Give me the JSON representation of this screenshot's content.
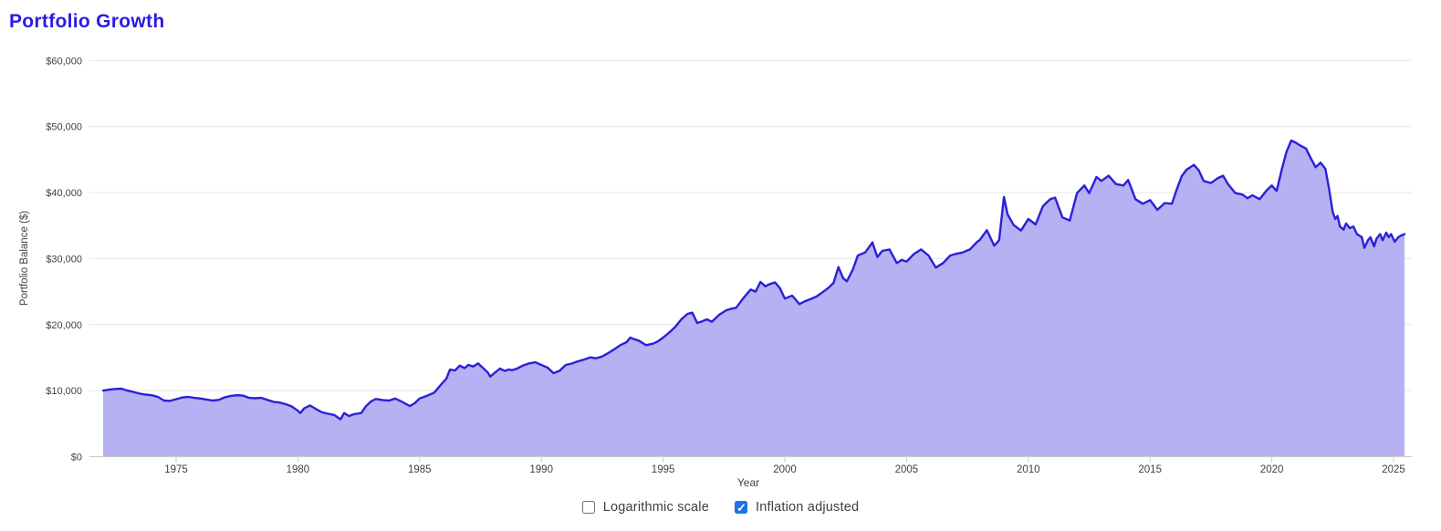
{
  "title": {
    "text": "Portfolio Growth",
    "color": "#2b1ae3"
  },
  "controls": {
    "logarithmic": {
      "label": "Logarithmic scale",
      "checked": false
    },
    "inflation": {
      "label": "Inflation adjusted",
      "checked": true,
      "accent_color": "#1a73e8"
    }
  },
  "chart_data": {
    "type": "area",
    "title": "Portfolio Growth",
    "xlabel": "Year",
    "ylabel": "Portfolio Balance ($)",
    "xlim": [
      1971.9,
      2025.8
    ],
    "ylim": [
      0,
      60000
    ],
    "grid": "horizontal",
    "legend": "none",
    "line_color": "#2a20d9",
    "fill_color": "#b6b1f2",
    "grid_color": "#e6e6e6",
    "axis_color": "#c9c9c9",
    "tick_text_color": "#3f3f3f",
    "x_ticks": [
      1975,
      1980,
      1985,
      1990,
      1995,
      2000,
      2005,
      2010,
      2015,
      2020,
      2025
    ],
    "x_tick_labels": [
      "1975",
      "1980",
      "1985",
      "1990",
      "1995",
      "2000",
      "2005",
      "2010",
      "2015",
      "2020",
      "2025"
    ],
    "y_ticks": [
      0,
      10000,
      20000,
      30000,
      40000,
      50000,
      60000
    ],
    "y_tick_labels": [
      "$0",
      "$10,000",
      "$20,000",
      "$30,000",
      "$40,000",
      "$50,000",
      "$60,000"
    ],
    "series": [
      {
        "name": "Portfolio Balance",
        "points": [
          [
            1972.0,
            10000
          ],
          [
            1972.25,
            10150
          ],
          [
            1972.5,
            10250
          ],
          [
            1972.75,
            10300
          ],
          [
            1973.0,
            10000
          ],
          [
            1973.25,
            9800
          ],
          [
            1973.5,
            9550
          ],
          [
            1973.75,
            9400
          ],
          [
            1974.0,
            9300
          ],
          [
            1974.25,
            9050
          ],
          [
            1974.5,
            8500
          ],
          [
            1974.75,
            8450
          ],
          [
            1975.0,
            8700
          ],
          [
            1975.25,
            8950
          ],
          [
            1975.5,
            9050
          ],
          [
            1975.75,
            8900
          ],
          [
            1976.0,
            8800
          ],
          [
            1976.25,
            8650
          ],
          [
            1976.5,
            8500
          ],
          [
            1976.75,
            8600
          ],
          [
            1977.0,
            9000
          ],
          [
            1977.25,
            9200
          ],
          [
            1977.5,
            9300
          ],
          [
            1977.75,
            9250
          ],
          [
            1978.0,
            8900
          ],
          [
            1978.25,
            8850
          ],
          [
            1978.5,
            8900
          ],
          [
            1978.75,
            8600
          ],
          [
            1979.0,
            8300
          ],
          [
            1979.25,
            8200
          ],
          [
            1979.5,
            7950
          ],
          [
            1979.75,
            7600
          ],
          [
            1980.0,
            6950
          ],
          [
            1980.1,
            6600
          ],
          [
            1980.25,
            7300
          ],
          [
            1980.5,
            7750
          ],
          [
            1980.75,
            7200
          ],
          [
            1981.0,
            6700
          ],
          [
            1981.25,
            6500
          ],
          [
            1981.5,
            6300
          ],
          [
            1981.75,
            5650
          ],
          [
            1981.9,
            6600
          ],
          [
            1982.1,
            6150
          ],
          [
            1982.3,
            6430
          ],
          [
            1982.6,
            6610
          ],
          [
            1982.8,
            7650
          ],
          [
            1983.0,
            8350
          ],
          [
            1983.2,
            8730
          ],
          [
            1983.5,
            8550
          ],
          [
            1983.75,
            8500
          ],
          [
            1984.0,
            8800
          ],
          [
            1984.25,
            8350
          ],
          [
            1984.6,
            7650
          ],
          [
            1984.8,
            8100
          ],
          [
            1985.0,
            8820
          ],
          [
            1985.3,
            9200
          ],
          [
            1985.6,
            9700
          ],
          [
            1985.9,
            11000
          ],
          [
            1986.1,
            11800
          ],
          [
            1986.25,
            13200
          ],
          [
            1986.45,
            13050
          ],
          [
            1986.65,
            13790
          ],
          [
            1986.85,
            13400
          ],
          [
            1987.0,
            13890
          ],
          [
            1987.2,
            13650
          ],
          [
            1987.4,
            14120
          ],
          [
            1987.6,
            13430
          ],
          [
            1987.8,
            12740
          ],
          [
            1987.9,
            12130
          ],
          [
            1988.1,
            12740
          ],
          [
            1988.3,
            13340
          ],
          [
            1988.5,
            12970
          ],
          [
            1988.65,
            13200
          ],
          [
            1988.8,
            13100
          ],
          [
            1989.0,
            13340
          ],
          [
            1989.25,
            13800
          ],
          [
            1989.5,
            14120
          ],
          [
            1989.75,
            14300
          ],
          [
            1990.0,
            13890
          ],
          [
            1990.25,
            13500
          ],
          [
            1990.5,
            12640
          ],
          [
            1990.75,
            13000
          ],
          [
            1991.0,
            13890
          ],
          [
            1991.25,
            14100
          ],
          [
            1991.5,
            14440
          ],
          [
            1991.75,
            14700
          ],
          [
            1992.0,
            15040
          ],
          [
            1992.25,
            14900
          ],
          [
            1992.5,
            15180
          ],
          [
            1992.75,
            15700
          ],
          [
            1993.0,
            16280
          ],
          [
            1993.25,
            16900
          ],
          [
            1993.5,
            17350
          ],
          [
            1993.65,
            18040
          ],
          [
            1993.8,
            17800
          ],
          [
            1994.0,
            17580
          ],
          [
            1994.3,
            16890
          ],
          [
            1994.6,
            17120
          ],
          [
            1994.8,
            17500
          ],
          [
            1995.0,
            18040
          ],
          [
            1995.25,
            18800
          ],
          [
            1995.5,
            19650
          ],
          [
            1995.75,
            20800
          ],
          [
            1996.0,
            21630
          ],
          [
            1996.2,
            21810
          ],
          [
            1996.4,
            20250
          ],
          [
            1996.6,
            20500
          ],
          [
            1996.8,
            20800
          ],
          [
            1997.0,
            20430
          ],
          [
            1997.3,
            21490
          ],
          [
            1997.6,
            22180
          ],
          [
            1997.8,
            22400
          ],
          [
            1998.0,
            22550
          ],
          [
            1998.3,
            24020
          ],
          [
            1998.6,
            25320
          ],
          [
            1998.8,
            25000
          ],
          [
            1999.0,
            26470
          ],
          [
            1999.2,
            25800
          ],
          [
            1999.35,
            26090
          ],
          [
            1999.6,
            26400
          ],
          [
            1999.8,
            25500
          ],
          [
            2000.0,
            23930
          ],
          [
            2000.3,
            24390
          ],
          [
            2000.6,
            23100
          ],
          [
            2000.8,
            23500
          ],
          [
            2001.0,
            23790
          ],
          [
            2001.3,
            24250
          ],
          [
            2001.6,
            25040
          ],
          [
            2001.8,
            25600
          ],
          [
            2002.0,
            26330
          ],
          [
            2002.2,
            28720
          ],
          [
            2002.4,
            27000
          ],
          [
            2002.55,
            26560
          ],
          [
            2002.8,
            28400
          ],
          [
            2003.0,
            30470
          ],
          [
            2003.3,
            30930
          ],
          [
            2003.6,
            32450
          ],
          [
            2003.8,
            30240
          ],
          [
            2004.0,
            31160
          ],
          [
            2004.3,
            31390
          ],
          [
            2004.6,
            29320
          ],
          [
            2004.8,
            29800
          ],
          [
            2005.0,
            29550
          ],
          [
            2005.3,
            30700
          ],
          [
            2005.6,
            31390
          ],
          [
            2005.9,
            30470
          ],
          [
            2006.2,
            28630
          ],
          [
            2006.5,
            29320
          ],
          [
            2006.8,
            30470
          ],
          [
            2007.0,
            30700
          ],
          [
            2007.3,
            30930
          ],
          [
            2007.6,
            31390
          ],
          [
            2007.9,
            32550
          ],
          [
            2008.0,
            32780
          ],
          [
            2008.3,
            34300
          ],
          [
            2008.6,
            31950
          ],
          [
            2008.8,
            32780
          ],
          [
            2009.0,
            39320
          ],
          [
            2009.15,
            36690
          ],
          [
            2009.4,
            35080
          ],
          [
            2009.7,
            34250
          ],
          [
            2010.0,
            36000
          ],
          [
            2010.3,
            35170
          ],
          [
            2010.6,
            37940
          ],
          [
            2010.9,
            39000
          ],
          [
            2011.1,
            39230
          ],
          [
            2011.4,
            36230
          ],
          [
            2011.7,
            35770
          ],
          [
            2012.0,
            39920
          ],
          [
            2012.3,
            41070
          ],
          [
            2012.5,
            39920
          ],
          [
            2012.8,
            42360
          ],
          [
            2013.0,
            41760
          ],
          [
            2013.3,
            42550
          ],
          [
            2013.6,
            41300
          ],
          [
            2013.9,
            41070
          ],
          [
            2014.1,
            41900
          ],
          [
            2014.4,
            39000
          ],
          [
            2014.7,
            38310
          ],
          [
            2015.0,
            38860
          ],
          [
            2015.3,
            37380
          ],
          [
            2015.6,
            38400
          ],
          [
            2015.9,
            38310
          ],
          [
            2016.1,
            40500
          ],
          [
            2016.3,
            42500
          ],
          [
            2016.5,
            43460
          ],
          [
            2016.8,
            44200
          ],
          [
            2017.0,
            43370
          ],
          [
            2017.2,
            41760
          ],
          [
            2017.5,
            41440
          ],
          [
            2017.8,
            42220
          ],
          [
            2018.0,
            42550
          ],
          [
            2018.2,
            41300
          ],
          [
            2018.5,
            39920
          ],
          [
            2018.8,
            39690
          ],
          [
            2019.0,
            39140
          ],
          [
            2019.2,
            39600
          ],
          [
            2019.5,
            39000
          ],
          [
            2019.8,
            40380
          ],
          [
            2020.0,
            41070
          ],
          [
            2020.2,
            40250
          ],
          [
            2020.4,
            43370
          ],
          [
            2020.6,
            46130
          ],
          [
            2020.8,
            47890
          ],
          [
            2021.0,
            47520
          ],
          [
            2021.2,
            47060
          ],
          [
            2021.4,
            46690
          ],
          [
            2021.6,
            45220
          ],
          [
            2021.8,
            43830
          ],
          [
            2022.0,
            44530
          ],
          [
            2022.2,
            43600
          ],
          [
            2022.35,
            40600
          ],
          [
            2022.5,
            37100
          ],
          [
            2022.6,
            36000
          ],
          [
            2022.7,
            36460
          ],
          [
            2022.8,
            34850
          ],
          [
            2022.95,
            34390
          ],
          [
            2023.05,
            35310
          ],
          [
            2023.2,
            34620
          ],
          [
            2023.35,
            34850
          ],
          [
            2023.5,
            33700
          ],
          [
            2023.7,
            33240
          ],
          [
            2023.8,
            31630
          ],
          [
            2023.95,
            32780
          ],
          [
            2024.05,
            33240
          ],
          [
            2024.2,
            31860
          ],
          [
            2024.3,
            33010
          ],
          [
            2024.45,
            33700
          ],
          [
            2024.55,
            32780
          ],
          [
            2024.7,
            33930
          ],
          [
            2024.8,
            33240
          ],
          [
            2024.9,
            33700
          ],
          [
            2025.05,
            32550
          ],
          [
            2025.2,
            33240
          ],
          [
            2025.3,
            33470
          ],
          [
            2025.45,
            33700
          ]
        ]
      }
    ]
  }
}
